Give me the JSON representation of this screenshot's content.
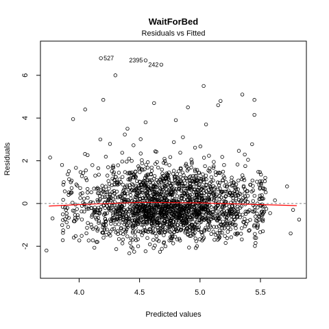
{
  "chart_data": {
    "type": "scatter",
    "title": "WaitForBed",
    "subtitle": "Residuals vs Fitted",
    "xlabel": "Predicted values",
    "ylabel": "Residuals",
    "xlim": [
      3.68,
      5.88
    ],
    "ylim": [
      -3.5,
      7.6
    ],
    "x_ticks": [
      4.0,
      4.5,
      5.0,
      5.5
    ],
    "x_tick_labels": [
      "4.0",
      "4.5",
      "5.0",
      "5.5"
    ],
    "y_ticks": [
      -2,
      0,
      2,
      4,
      6
    ],
    "y_tick_labels": [
      "-2",
      "0",
      "2",
      "4",
      "6"
    ],
    "grid": false,
    "zero_line_color": "#808080",
    "smooth_line_color": "#ff0000",
    "point_color": "#000000",
    "smooth_line": [
      {
        "x": 3.75,
        "y": -0.12
      },
      {
        "x": 4.0,
        "y": -0.05
      },
      {
        "x": 4.5,
        "y": 0.05
      },
      {
        "x": 5.0,
        "y": 0.03
      },
      {
        "x": 5.5,
        "y": -0.05
      },
      {
        "x": 5.8,
        "y": -0.1
      }
    ],
    "labeled_points": [
      {
        "label": "527",
        "x": 4.18,
        "y": 6.8
      },
      {
        "label": "2395",
        "x": 4.55,
        "y": 6.7
      },
      {
        "label": "242",
        "x": 4.68,
        "y": 6.5
      }
    ],
    "highlighted_points": [
      {
        "x": 4.3,
        "y": 6.0
      },
      {
        "x": 5.03,
        "y": 5.5
      },
      {
        "x": 5.35,
        "y": 5.1
      },
      {
        "x": 5.45,
        "y": 4.85
      },
      {
        "x": 5.45,
        "y": 4.15
      },
      {
        "x": 4.2,
        "y": 4.85
      },
      {
        "x": 4.62,
        "y": 4.7
      },
      {
        "x": 5.17,
        "y": 4.8
      },
      {
        "x": 3.95,
        "y": 3.95
      },
      {
        "x": 4.05,
        "y": 4.4
      },
      {
        "x": 4.4,
        "y": 3.5
      },
      {
        "x": 4.9,
        "y": 4.5
      },
      {
        "x": 5.15,
        "y": 4.6
      },
      {
        "x": 4.55,
        "y": 3.8
      },
      {
        "x": 4.8,
        "y": 3.9
      },
      {
        "x": 5.05,
        "y": 3.7
      },
      {
        "x": 3.76,
        "y": 2.15
      },
      {
        "x": 3.73,
        "y": -2.2
      },
      {
        "x": 3.78,
        "y": -0.7
      },
      {
        "x": 5.72,
        "y": 0.8
      },
      {
        "x": 5.77,
        "y": -0.3
      },
      {
        "x": 5.82,
        "y": -0.75
      },
      {
        "x": 5.75,
        "y": -1.4
      },
      {
        "x": 5.62,
        "y": 0.15
      },
      {
        "x": 5.52,
        "y": -1.3
      },
      {
        "x": 5.58,
        "y": -0.45
      }
    ],
    "cloud": {
      "n": 2000,
      "x_center": 4.75,
      "x_sd": 0.38,
      "x_min": 3.85,
      "x_max": 5.55,
      "y_center": -0.15,
      "y_sd_lower": 0.75,
      "y_sd_upper": 1.05,
      "y_min": -2.35,
      "y_max": 3.3
    }
  }
}
